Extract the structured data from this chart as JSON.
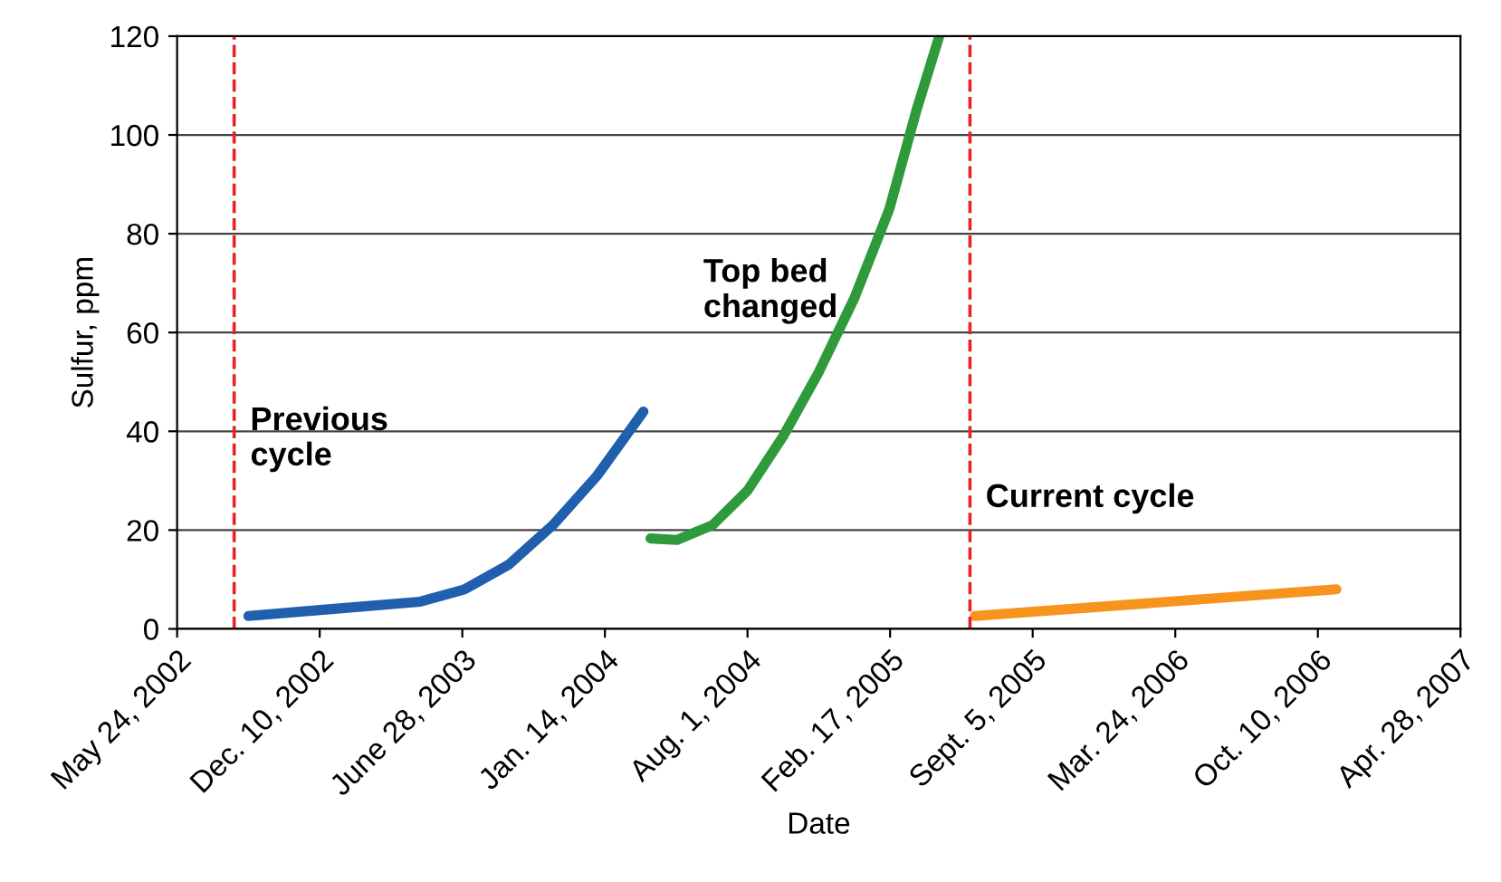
{
  "chart_data": {
    "type": "line",
    "xlabel": "Date",
    "ylabel": "Sulfur, ppm",
    "xlim": [
      "2002-05-24",
      "2007-04-28"
    ],
    "ylim": [
      0,
      120
    ],
    "yticks": [
      0,
      20,
      40,
      60,
      80,
      100,
      120
    ],
    "xticks": [
      {
        "value": "2002-05-24",
        "label": "May 24, 2002"
      },
      {
        "value": "2002-12-10",
        "label": "Dec. 10, 2002"
      },
      {
        "value": "2003-06-28",
        "label": "June 28, 2003"
      },
      {
        "value": "2004-01-14",
        "label": "Jan. 14, 2004"
      },
      {
        "value": "2004-08-01",
        "label": "Aug. 1, 2004"
      },
      {
        "value": "2005-02-17",
        "label": "Feb. 17, 2005"
      },
      {
        "value": "2005-09-05",
        "label": "Sept. 5, 2005"
      },
      {
        "value": "2006-03-24",
        "label": "Mar. 24, 2006"
      },
      {
        "value": "2006-10-10",
        "label": "Oct. 10, 2006"
      },
      {
        "value": "2007-04-28",
        "label": "Apr. 28, 2007"
      }
    ],
    "grid": "y",
    "line_style": "solid",
    "series": [
      {
        "color": "#1f5fad",
        "x": [
          "2002-09-01",
          "2002-12-26",
          "2003-04-30",
          "2003-07-01",
          "2003-09-01",
          "2003-11-02",
          "2004-01-03",
          "2004-03-08"
        ],
        "values": [
          2.6,
          4,
          5.5,
          8,
          13,
          21,
          31,
          44
        ]
      },
      {
        "color": "#2e9a3c",
        "x": [
          "2004-03-18",
          "2004-04-24",
          "2004-06-13",
          "2004-08-01",
          "2004-09-20",
          "2004-11-09",
          "2004-12-29",
          "2005-02-16",
          "2005-03-26",
          "2005-04-27"
        ],
        "values": [
          18.3,
          18,
          21,
          28,
          39,
          52,
          67,
          85,
          105,
          120
        ]
      },
      {
        "color": "#f7941d",
        "x": [
          "2005-06-16",
          "2006-11-05"
        ],
        "values": [
          2.6,
          8
        ]
      }
    ],
    "ref_lines": [
      {
        "axis": "x",
        "value": "2002-08-12",
        "color": "#e8212a",
        "line_style": "dashed"
      },
      {
        "axis": "x",
        "value": "2005-06-09",
        "color": "#e8212a",
        "line_style": "dashed"
      }
    ],
    "annotations": [
      "Previous\ncycle",
      "Top bed\nchanged",
      "Current cycle"
    ]
  }
}
